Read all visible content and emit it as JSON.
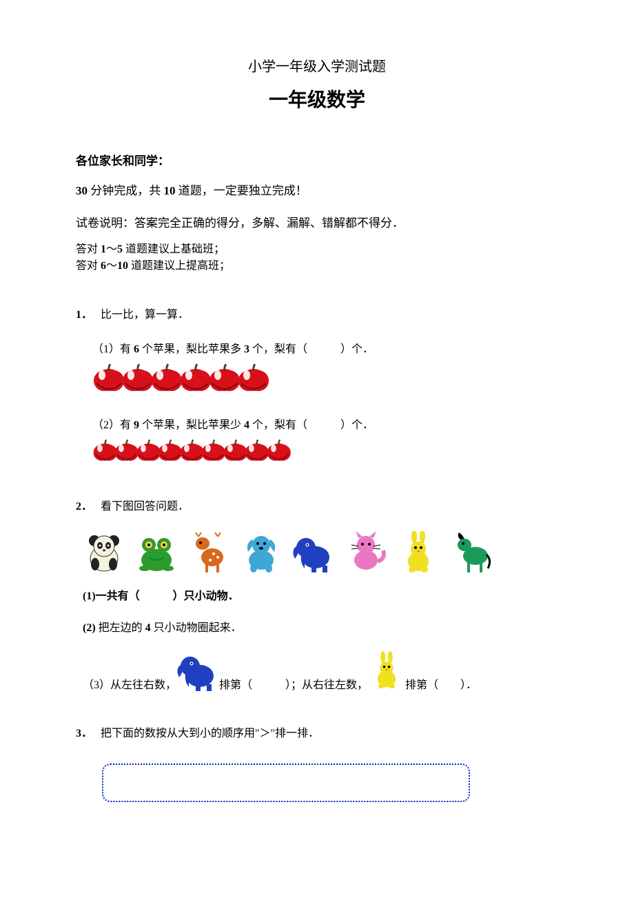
{
  "title": "小学一年级入学测试题",
  "subtitle": "一年级数学",
  "greeting": "各位家长和同学：",
  "instr1_parts": {
    "a": "30",
    "b": " 分钟完成，共 ",
    "c": "10",
    "d": " 道题，一定要独立完成！"
  },
  "instr2": "试卷说明：答案完全正确的得分，多解、漏解、错解都不得分．",
  "rec1_parts": {
    "a": "答对 ",
    "b": "1",
    "c": "～",
    "d": "5",
    "e": " 道题建议上基础班；"
  },
  "rec2_parts": {
    "a": "答对 ",
    "b": "6",
    "c": "～",
    "d": "10",
    "e": " 道题建议上提高班；"
  },
  "q1": {
    "num": "1．",
    "head": "比一比，算一算．",
    "part1_parts": {
      "a": "（1）有 ",
      "b": "6",
      "c": " 个苹果，梨比苹果多 ",
      "d": "3",
      "e": " 个，梨有（　　　）个．"
    },
    "apples1_count": 6,
    "part2_parts": {
      "a": "（2）有 ",
      "b": "9",
      "c": " 个苹果，梨比苹果少 ",
      "d": "4",
      "e": " 个，梨有（　　　）个．"
    },
    "apples2_count": 9
  },
  "q2": {
    "num": "2．",
    "head": "看下图回答问题．",
    "animals": [
      {
        "name": "panda",
        "body": "#f5f3e0",
        "accent": "#222222"
      },
      {
        "name": "frog",
        "body": "#2e9b2e",
        "accent": "#ffd040"
      },
      {
        "name": "deer",
        "body": "#d86a1e",
        "accent": "#ffffff"
      },
      {
        "name": "dog",
        "body": "#3fa7d6",
        "accent": "#ffffff"
      },
      {
        "name": "elephant",
        "body": "#2040c0",
        "accent": "#ffffff"
      },
      {
        "name": "cat",
        "body": "#e878c4",
        "accent": "#ffffff"
      },
      {
        "name": "rabbit",
        "body": "#f0e020",
        "accent": "#ffffff"
      },
      {
        "name": "horse",
        "body": "#1a9a5a",
        "accent": "#000000"
      }
    ],
    "sub1": "(1)一共有（　　　）只小动物．",
    "sub2_parts": {
      "a": "(2) ",
      "b": "把左边的 ",
      "c": "4",
      "d": " 只小动物圈起来．"
    },
    "sub3_a": "（3）从左往右数，",
    "sub3_b": " 排第（　　　）；从右往左数，",
    "sub3_c": " 排第（　　）．",
    "inline_elephant": {
      "body": "#2040c0"
    },
    "inline_rabbit": {
      "body": "#f0e020"
    }
  },
  "q3": {
    "num": "3．",
    "head": "把下面的数按从大到小的顺序用\"＞\"排一排．",
    "box_border_color": "#0020c0"
  },
  "colors": {
    "apple_red": "#d8101a",
    "apple_shine": "#ffffff",
    "apple_dark": "#7a0a10",
    "stem": "#5a3a1a"
  }
}
